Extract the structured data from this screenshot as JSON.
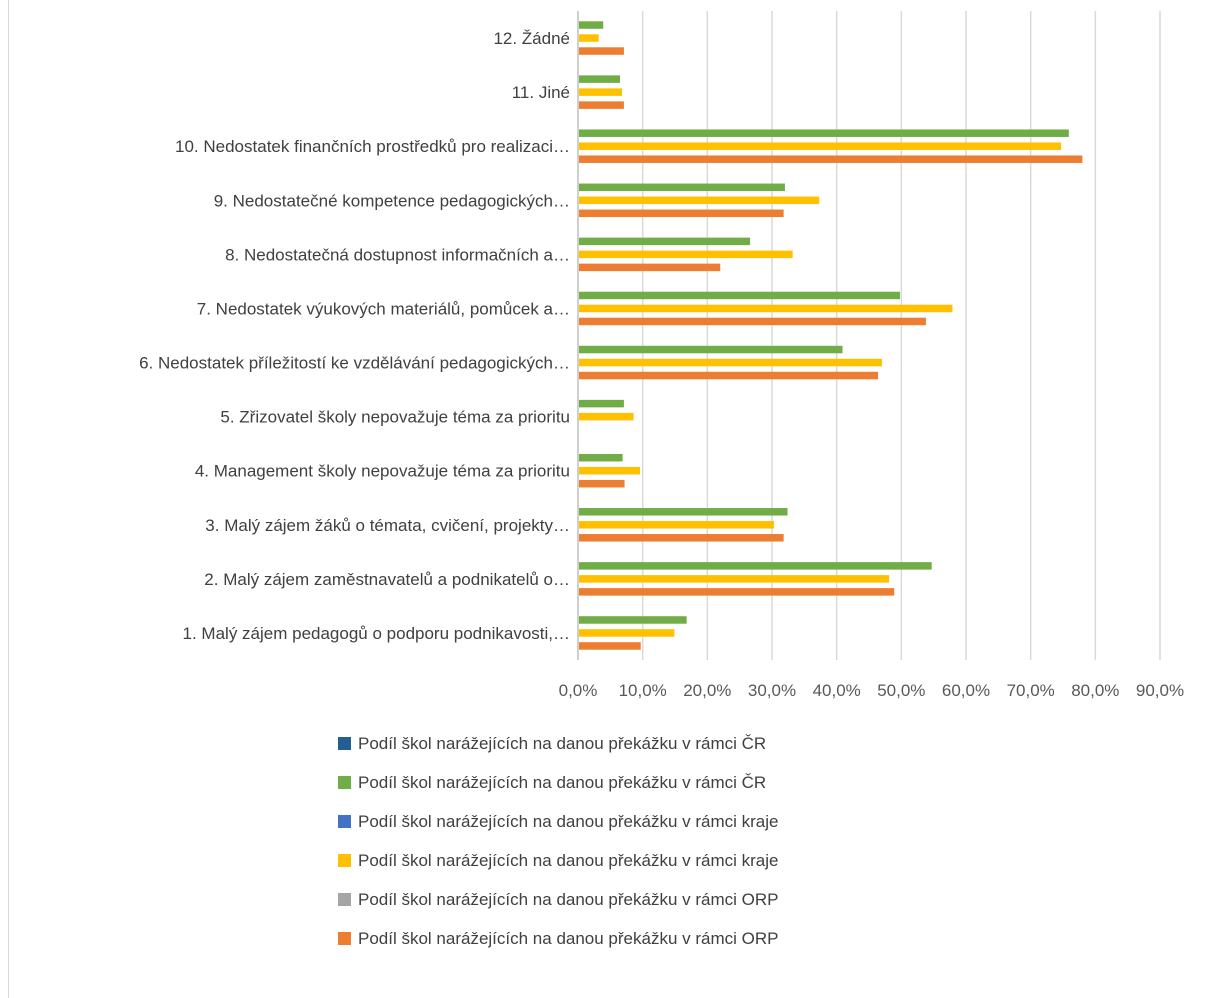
{
  "chart_data": {
    "type": "bar",
    "orientation": "horizontal",
    "title": "",
    "xlabel": "",
    "ylabel": "",
    "grid": true,
    "legend_position": "bottom",
    "xlim": [
      0,
      90
    ],
    "x_ticks": [
      "0,0%",
      "10,0%",
      "20,0%",
      "30,0%",
      "40,0%",
      "50,0%",
      "60,0%",
      "70,0%",
      "80,0%",
      "90,0%"
    ],
    "categories": [
      "1. Malý zájem pedagogů o podporu podnikavosti,…",
      "2. Malý zájem zaměstnavatelů a podnikatelů o…",
      "3. Malý zájem žáků o témata, cvičení, projekty…",
      "4. Management školy nepovažuje téma za prioritu",
      "5. Zřizovatel školy nepovažuje téma za prioritu",
      "6. Nedostatek příležitostí ke vzdělávání pedagogických…",
      "7. Nedostatek výukových materiálů, pomůcek a…",
      "8. Nedostatečná dostupnost informačních a…",
      "9. Nedostatečné kompetence pedagogických…",
      "10. Nedostatek finančních prostředků pro realizaci…",
      "11. Jiné",
      "12. Žádné"
    ],
    "series": [
      {
        "name": "Podíl škol narážejících na danou překážku  v rámci ČR",
        "color": "#70ad47",
        "values": [
          16.8,
          54.7,
          32.4,
          6.9,
          7.1,
          40.9,
          49.8,
          26.6,
          32.0,
          75.9,
          6.5,
          3.9
        ]
      },
      {
        "name": "Podíl škol narážejících na danou překážku  v rámci kraje",
        "color": "#ffc000",
        "values": [
          14.9,
          48.1,
          30.3,
          9.6,
          8.6,
          47.0,
          57.9,
          33.2,
          37.3,
          74.7,
          6.8,
          3.2
        ]
      },
      {
        "name": "Podíl škol narážejících na danou překážku  v rámci ORP",
        "color": "#ed7d31",
        "values": [
          9.7,
          48.9,
          31.8,
          7.2,
          null,
          46.4,
          53.8,
          22.0,
          31.8,
          78.0,
          7.1,
          7.1
        ]
      }
    ],
    "legend": [
      {
        "label": "Podíl škol narážejících na danou překážku  v rámci ČR",
        "color": "#255e91"
      },
      {
        "label": "Podíl škol narážejících na danou překážku  v rámci ČR",
        "color": "#70ad47"
      },
      {
        "label": "Podíl škol narážejících na danou překážku  v rámci kraje",
        "color": "#4472c4"
      },
      {
        "label": "Podíl škol narážejících na danou překážku  v rámci kraje",
        "color": "#ffc000"
      },
      {
        "label": "Podíl škol narážejících na danou překážku  v rámci ORP",
        "color": "#a5a5a5"
      },
      {
        "label": "Podíl škol narážejících na danou překážku  v rámci ORP",
        "color": "#ed7d31"
      }
    ]
  }
}
